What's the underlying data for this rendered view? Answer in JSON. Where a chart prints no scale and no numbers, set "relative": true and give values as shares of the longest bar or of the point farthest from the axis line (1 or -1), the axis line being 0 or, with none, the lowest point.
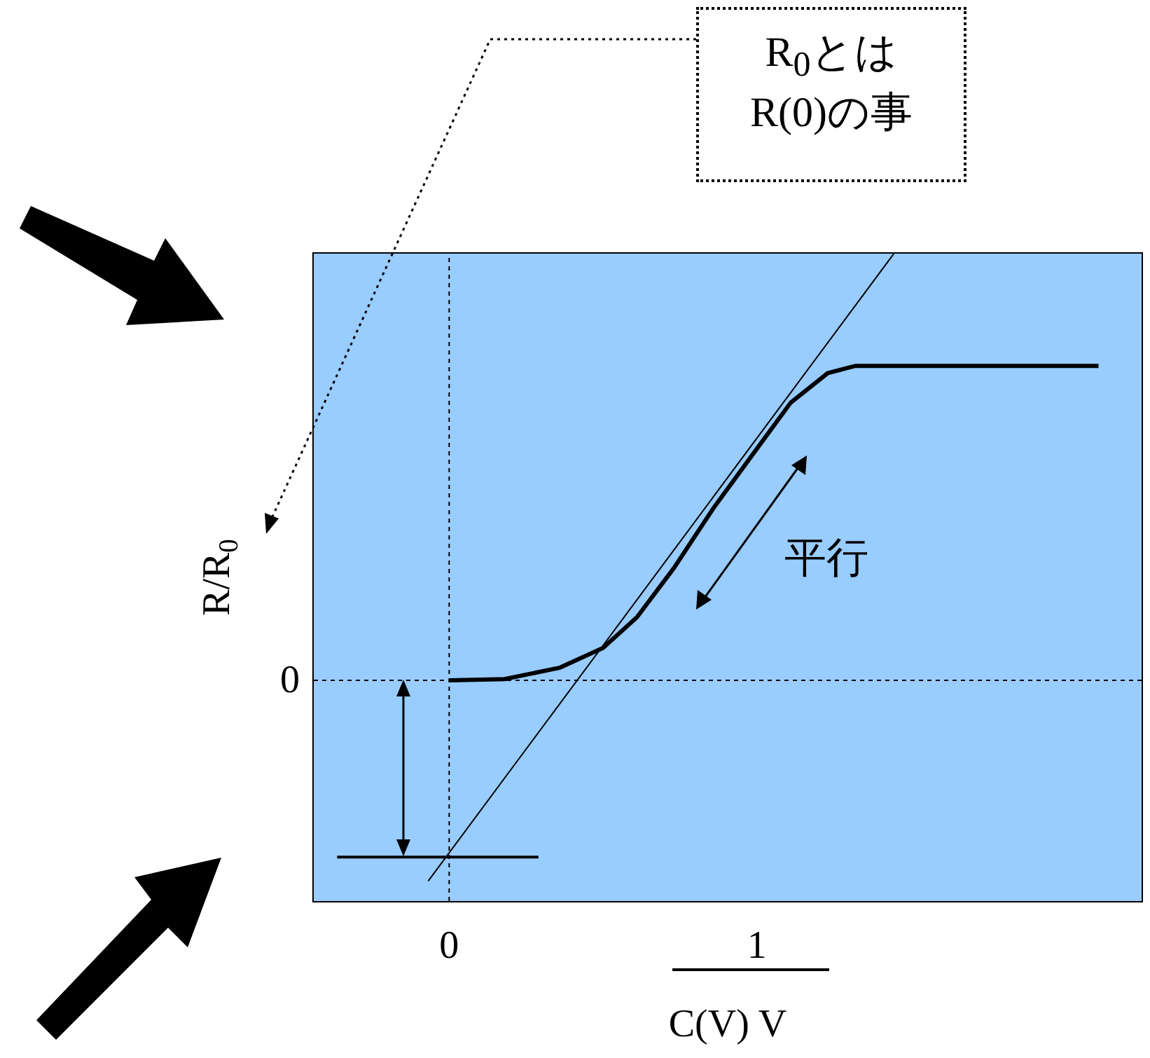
{
  "chart_data": {
    "type": "line",
    "relative": true,
    "xlabel": "C(V) V",
    "ylabel": "R/R$_{0}$",
    "xlim": [
      -0.44,
      2.25
    ],
    "xticks": [
      0,
      1
    ],
    "marker": "none",
    "series": [
      {
        "color": "#000000",
        "x": [
          0,
          0.18,
          0.36,
          0.5,
          0.61,
          0.73,
          0.86,
          1.0,
          1.11,
          1.23,
          1.32,
          1.39,
          2.11
        ],
        "values": [
          0,
          0.003,
          0.03,
          0.076,
          0.148,
          0.263,
          0.405,
          0.543,
          0.651,
          0.72,
          0.737,
          0.737,
          0.737
        ]
      },
      {
        "color": "#000000",
        "x": [
          -0.068,
          1.445
        ],
        "values": [
          -0.47,
          1.0
        ]
      },
      {
        "color": "#000000",
        "x": [
          -0.364,
          0.29
        ],
        "values": [
          -0.414,
          -0.414
        ]
      }
    ],
    "ref_lines": [
      {
        "axis": "x",
        "value": 0,
        "line_style": "dotted"
      },
      {
        "axis": "y",
        "value": 0,
        "label": "0",
        "line_style": "dotted"
      }
    ],
    "annotations": [
      "R$_{0}$とは\nR(0)の事",
      "平行"
    ]
  }
}
